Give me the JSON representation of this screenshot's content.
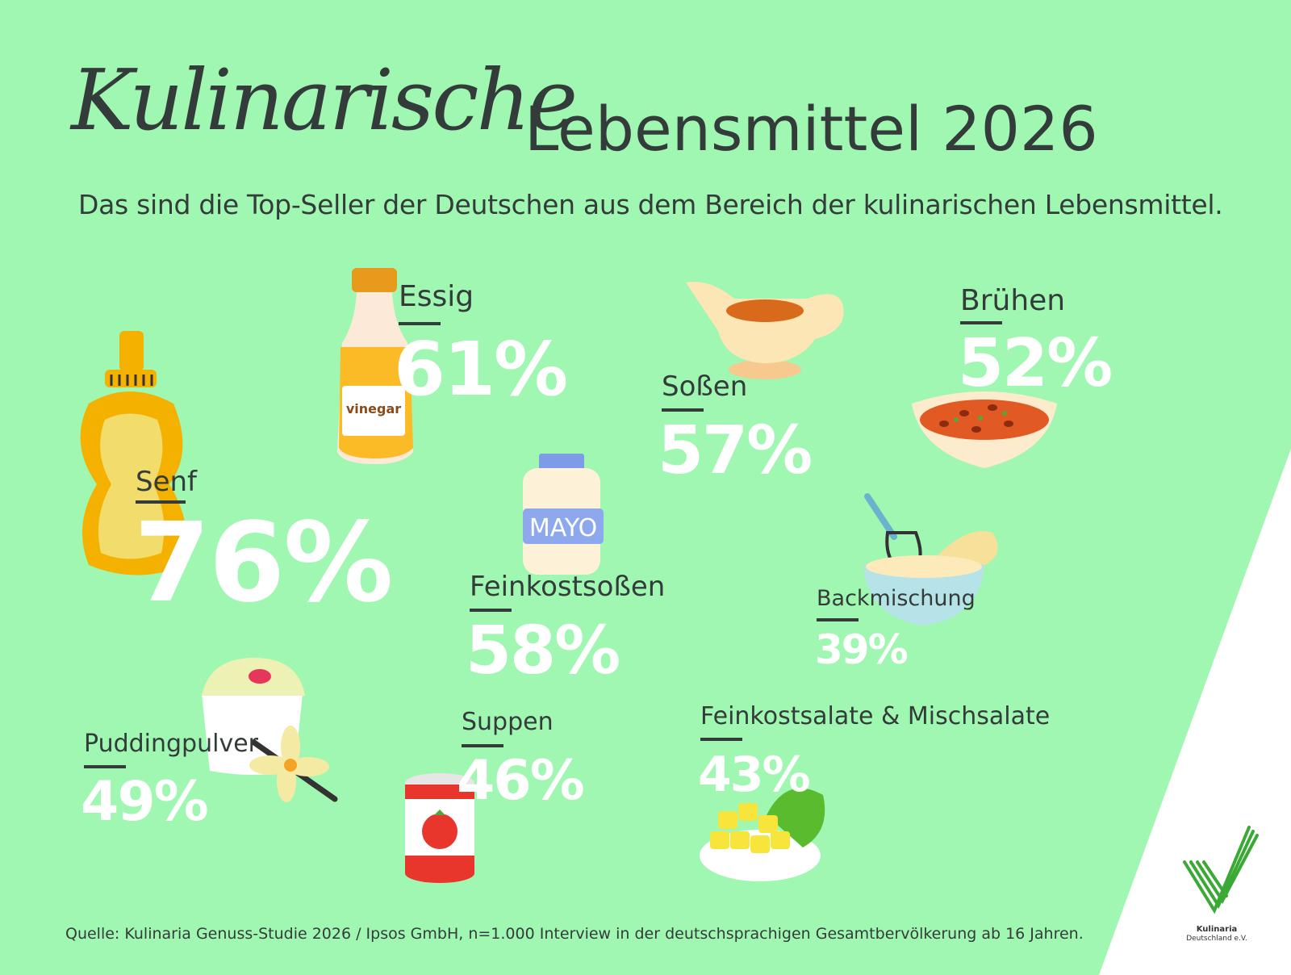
{
  "title": {
    "script": "Kulinarische",
    "main": "Lebensmittel 2026"
  },
  "subtitle": "Das sind die Top-Seller der Deutschen aus dem Bereich der kulinarischen Lebensmittel.",
  "chart_data": {
    "type": "bar",
    "categories": [
      "Senf",
      "Essig",
      "Feinkostsoßen",
      "Soßen",
      "Brühen",
      "Puddingpulver",
      "Suppen",
      "Feinkostsalate & Mischsalate",
      "Backmischung"
    ],
    "values": [
      76,
      61,
      58,
      57,
      52,
      49,
      46,
      43,
      39
    ],
    "value_labels": [
      "76%",
      "61%",
      "58%",
      "57%",
      "52%",
      "49%",
      "46%",
      "43%",
      "39%"
    ]
  },
  "items": {
    "senf": {
      "label": "Senf",
      "pct": "76%"
    },
    "essig": {
      "label": "Essig",
      "pct": "61%"
    },
    "feinkost": {
      "label": "Feinkostsoßen",
      "pct": "58%"
    },
    "sossen": {
      "label": "Soßen",
      "pct": "57%"
    },
    "bruehen": {
      "label": "Brühen",
      "pct": "52%"
    },
    "pudding": {
      "label": "Puddingpulver",
      "pct": "49%"
    },
    "suppen": {
      "label": "Suppen",
      "pct": "46%"
    },
    "salate": {
      "label": "Feinkostsalate & Mischsalate",
      "pct": "43%"
    },
    "backmischung": {
      "label": "Backmischung",
      "pct": "39%"
    }
  },
  "illustrations": {
    "vinegar_label": "vinegar",
    "mayo_label": "MAYO"
  },
  "source": "Quelle: Kulinaria Genuss-Studie 2026 / Ipsos GmbH, n=1.000 Interview in der deutschsprachigen Gesamtbervölkerung ab 16 Jahren.",
  "logo": {
    "name": "Kulinaria",
    "sub": "Deutschland e.V.",
    "color": "#3aa935"
  },
  "colors": {
    "background": "#a0f7b1",
    "text": "#333c3a",
    "percent": "#ffffff"
  }
}
